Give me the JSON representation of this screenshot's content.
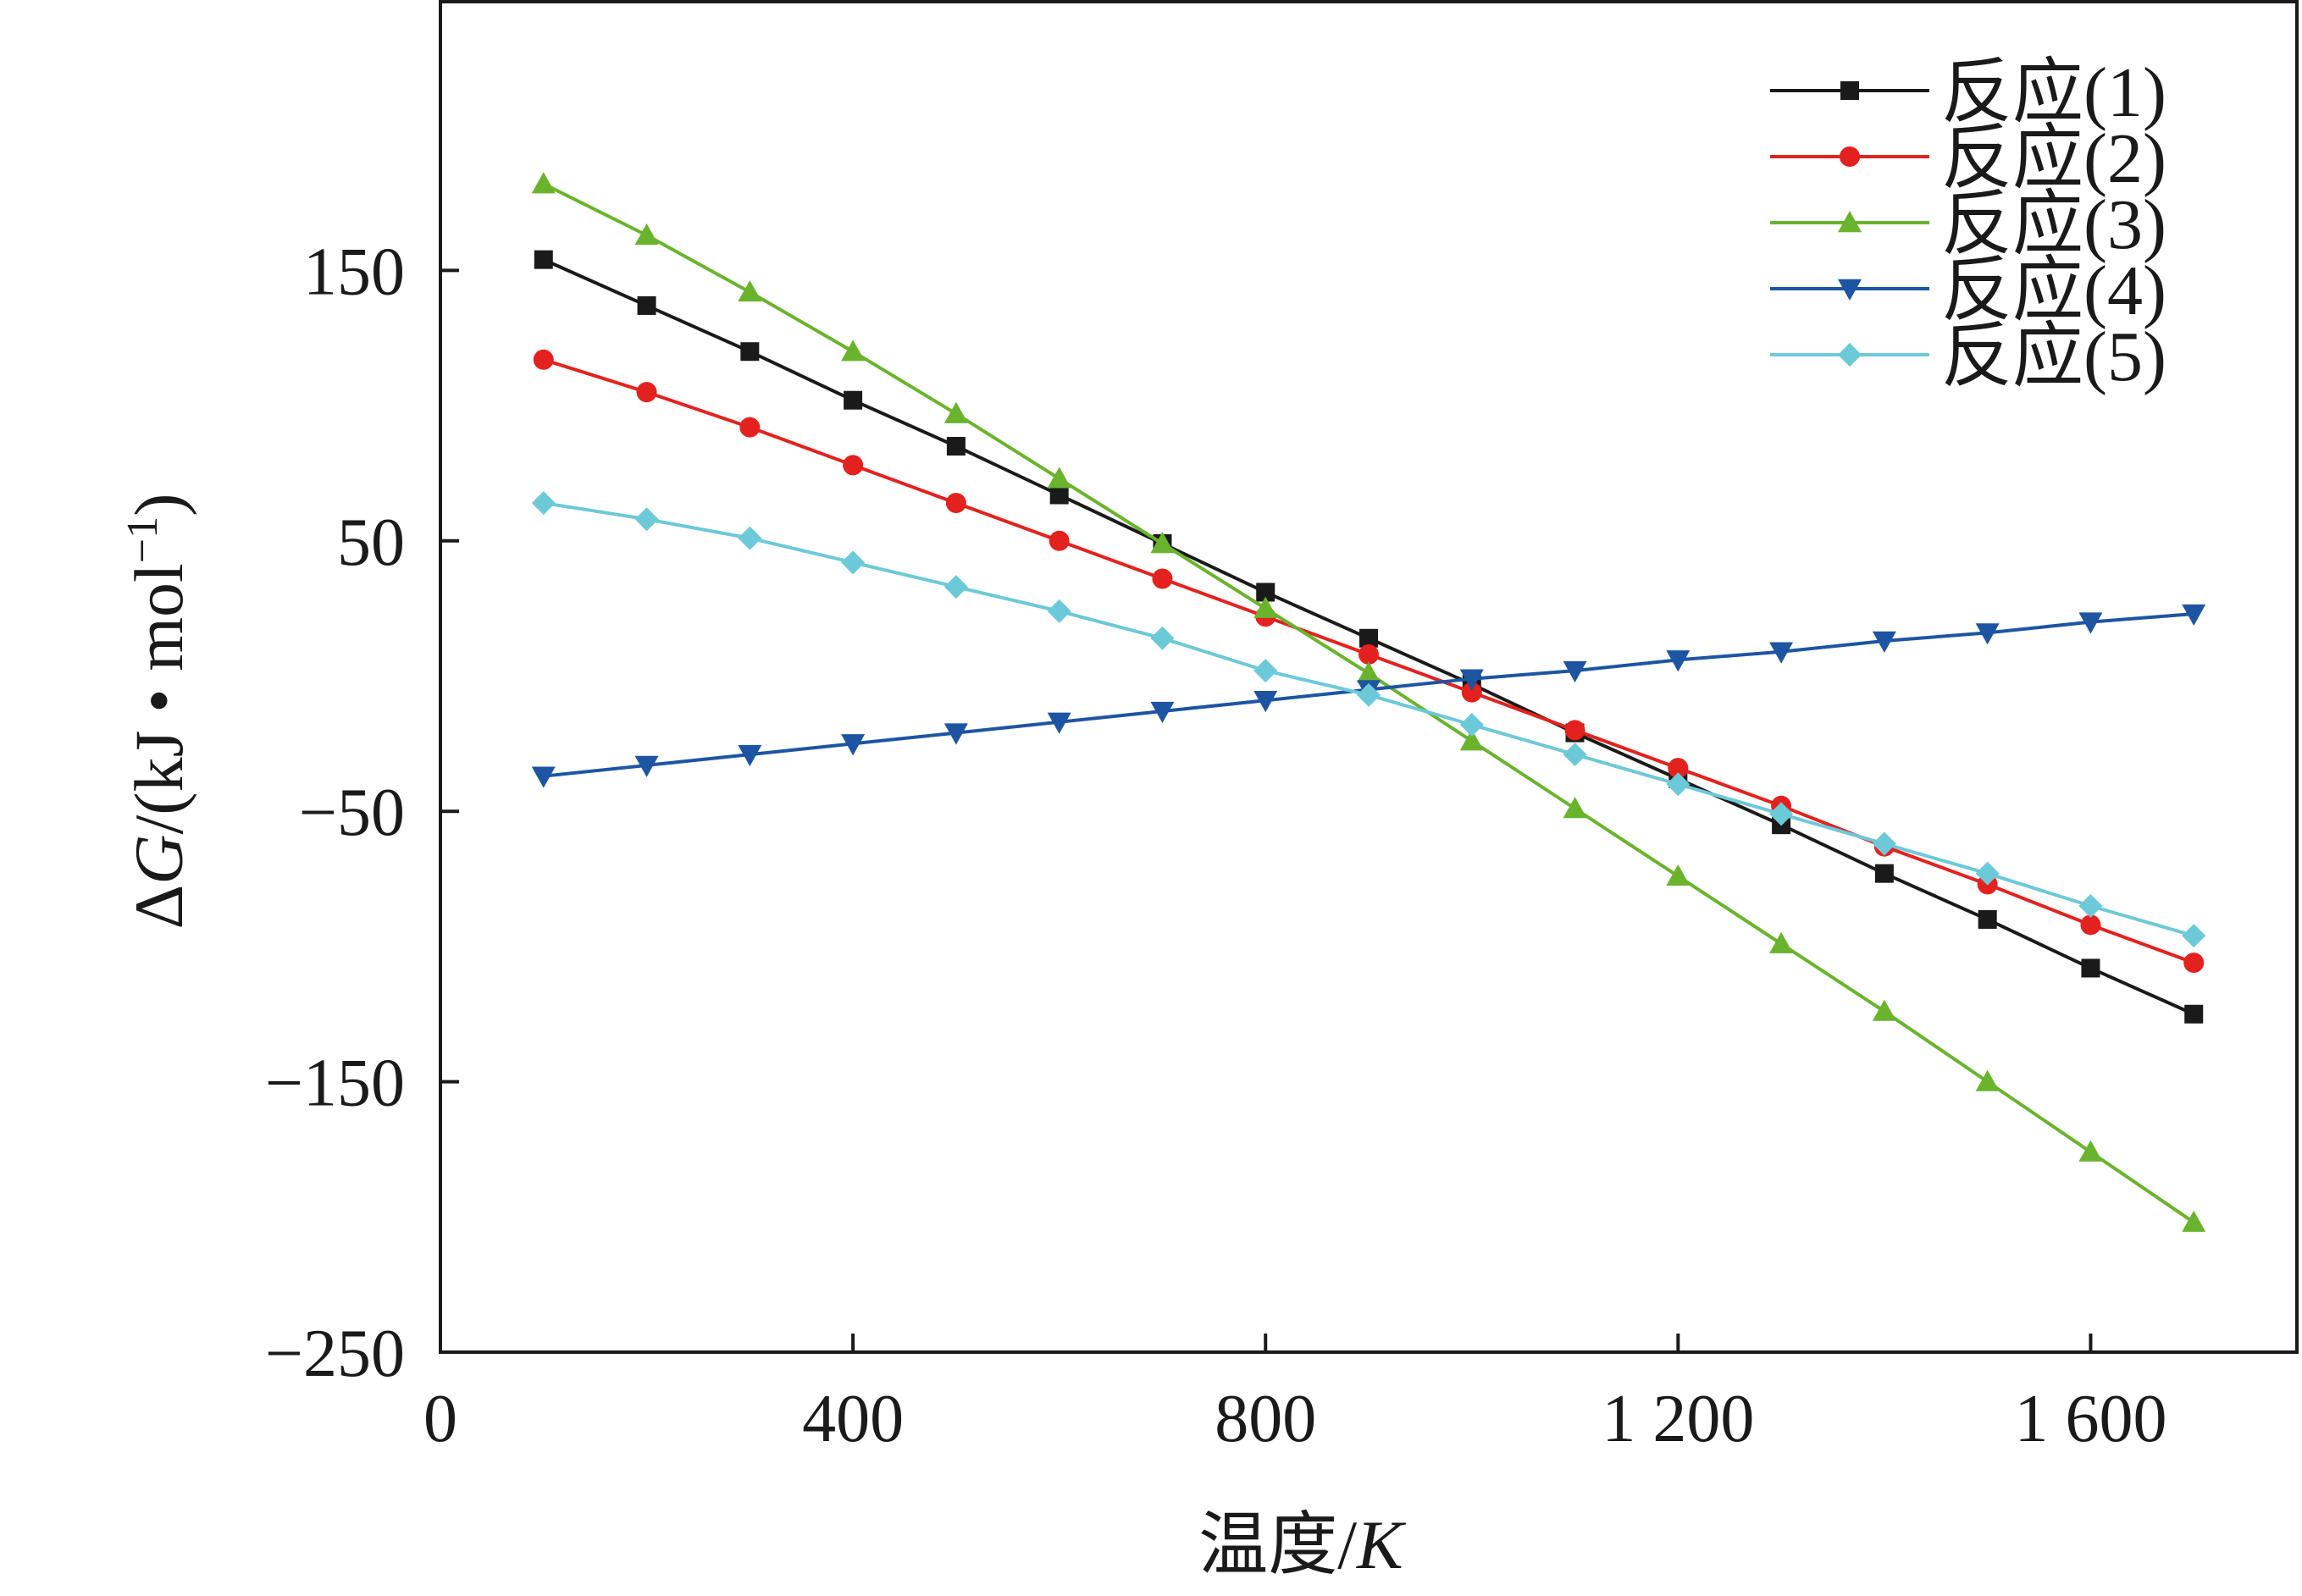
{
  "chart_data": {
    "type": "line",
    "xlabel_parts": [
      "温度/",
      "K"
    ],
    "ylabel_parts": [
      "Δ",
      "G",
      "/(kJ • mol",
      "−1",
      ")"
    ],
    "xlim": [
      0,
      1800
    ],
    "ylim": [
      -250,
      250
    ],
    "xticks": [
      0,
      400,
      800,
      1200,
      1600
    ],
    "xtick_labels": [
      "0",
      "400",
      "800",
      "1 200",
      "1 600"
    ],
    "yticks": [
      -250,
      -150,
      -50,
      50,
      150
    ],
    "ytick_labels": [
      "−250",
      "−150",
      "−50",
      "50",
      "150"
    ],
    "grid": false,
    "legend_position": "top-right",
    "x": [
      100,
      200,
      300,
      400,
      500,
      600,
      700,
      800,
      900,
      1000,
      1100,
      1200,
      1300,
      1400,
      1500,
      1600,
      1700
    ],
    "series": [
      {
        "name": "反应(1)",
        "color": "#1a1a1a",
        "marker": "square",
        "values": [
          154,
          137,
          120,
          102,
          85,
          67,
          49,
          31,
          14,
          -3,
          -21,
          -38,
          -55,
          -73,
          -90,
          -108,
          -125
        ]
      },
      {
        "name": "反应(2)",
        "color": "#e3221f",
        "marker": "circle",
        "values": [
          117,
          105,
          92,
          78,
          64,
          50,
          36,
          22,
          8,
          -6,
          -20,
          -34,
          -48,
          -63,
          -77,
          -92,
          -106
        ]
      },
      {
        "name": "反应(3)",
        "color": "#6ab42d",
        "marker": "triangle-up",
        "values": [
          182,
          163,
          142,
          120,
          97,
          73,
          49,
          25,
          1,
          -24,
          -49,
          -74,
          -99,
          -124,
          -150,
          -176,
          -202
        ]
      },
      {
        "name": "反应(4)",
        "color": "#1d55a3",
        "marker": "triangle-down",
        "values": [
          -37,
          -33,
          -29,
          -25,
          -21,
          -17,
          -13,
          -9,
          -5,
          -1,
          2,
          6,
          9,
          13,
          16,
          20,
          23
        ]
      },
      {
        "name": "反应(5)",
        "color": "#6cc9d8",
        "marker": "diamond",
        "values": [
          64,
          58,
          51,
          42,
          33,
          24,
          14,
          2,
          -7,
          -18,
          -29,
          -40,
          -51,
          -62,
          -73,
          -85,
          -96
        ]
      }
    ]
  }
}
